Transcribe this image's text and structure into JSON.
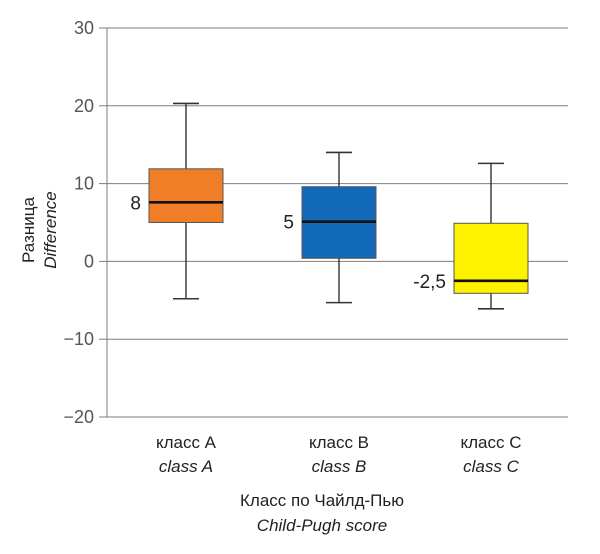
{
  "chart_data": {
    "type": "boxplot",
    "ylim": [
      -20,
      30
    ],
    "yticks": [
      -20,
      -10,
      0,
      10,
      20,
      30
    ],
    "grid": true,
    "ylabel": "Разница",
    "ylabel_en": "Difference",
    "xlabel": "Класс по Чайлд-Пью",
    "xlabel_en": "Child-Pugh score",
    "categories": [
      {
        "label": "класс А",
        "label_en": "class A",
        "min": -4.8,
        "q1": 5,
        "median": 7.6,
        "q3": 11.9,
        "max": 20.3,
        "median_label": "8",
        "color": "#f07e26"
      },
      {
        "label": "класс В",
        "label_en": "class B",
        "min": -5.3,
        "q1": 0.4,
        "median": 5.1,
        "q3": 9.6,
        "max": 14,
        "median_label": "5",
        "color": "#1269b8"
      },
      {
        "label": "класс С",
        "label_en": "class C",
        "min": -6.1,
        "q1": -4.1,
        "median": -2.5,
        "q3": 4.9,
        "max": 12.6,
        "median_label": "-2,5",
        "color": "#fff200"
      }
    ]
  }
}
